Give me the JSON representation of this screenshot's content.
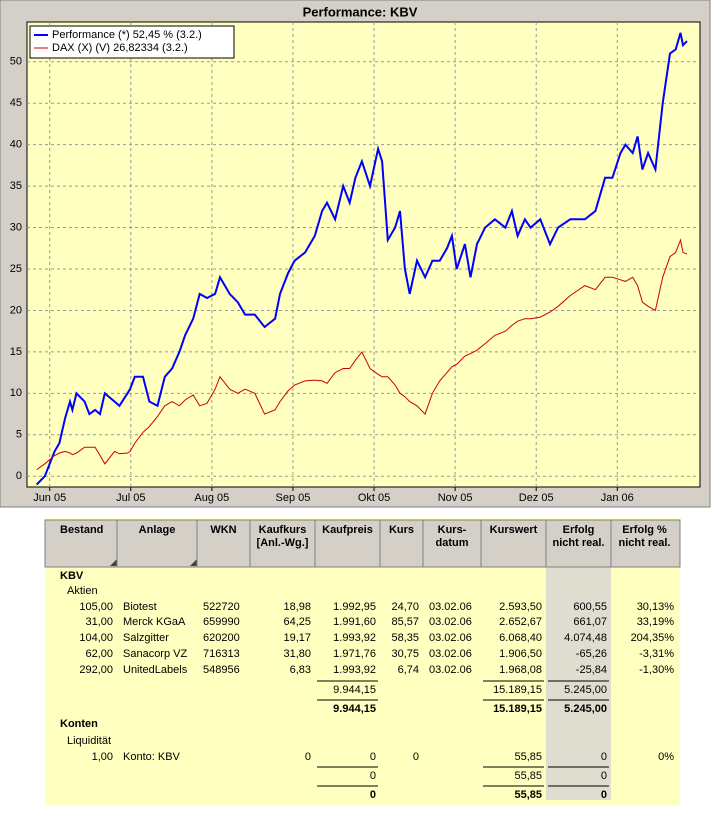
{
  "chart_data": {
    "type": "line",
    "title": "Performance: KBV",
    "x": [
      -0.16,
      -0.06,
      0.06,
      0.12,
      0.19,
      0.25,
      0.28,
      0.33,
      0.43,
      0.49,
      0.56,
      0.62,
      0.68,
      0.8,
      0.86,
      0.96,
      0.99,
      1.05,
      1.15,
      1.23,
      1.33,
      1.42,
      1.51,
      1.6,
      1.67,
      1.77,
      1.85,
      1.94,
      2.04,
      2.1,
      2.22,
      2.32,
      2.41,
      2.53,
      2.65,
      2.78,
      2.84,
      2.94,
      3.02,
      3.15,
      3.27,
      3.36,
      3.42,
      3.52,
      3.62,
      3.7,
      3.77,
      3.85,
      3.95,
      4.05,
      4.1,
      4.17,
      4.26,
      4.32,
      4.38,
      4.44,
      4.53,
      4.63,
      4.72,
      4.81,
      4.9,
      4.96,
      5.02,
      5.12,
      5.19,
      5.27,
      5.37,
      5.49,
      5.62,
      5.7,
      5.77,
      5.86,
      5.93,
      6.05,
      6.17,
      6.27,
      6.42,
      6.6,
      6.73,
      6.85,
      6.94,
      7.04,
      7.1,
      7.19,
      7.25,
      7.31,
      7.38,
      7.47,
      7.56,
      7.65,
      7.72,
      7.78,
      7.81,
      7.86
    ],
    "series": [
      {
        "name": "Performance (*) 52,45 % (3.2.)",
        "color": "#0000ff",
        "values": [
          -1,
          0,
          3,
          4,
          7,
          9,
          8,
          10,
          9,
          7.5,
          8,
          7.5,
          10,
          9,
          8.5,
          10,
          10.5,
          12,
          12,
          9,
          8.5,
          12,
          13,
          15,
          17,
          19,
          22,
          21.5,
          22,
          24,
          22,
          21,
          19.5,
          19.5,
          18,
          19,
          22,
          24.5,
          26,
          27,
          29,
          32,
          33,
          31,
          35,
          33,
          36,
          38,
          35,
          39.5,
          38,
          28.5,
          30,
          32,
          25,
          22,
          26,
          24,
          26,
          26,
          27.5,
          29,
          25,
          28,
          24,
          28,
          30,
          31,
          30,
          32,
          29,
          31,
          30,
          31,
          28,
          30,
          31,
          31,
          32,
          36,
          36,
          39,
          40,
          39,
          41,
          37,
          39,
          37,
          45,
          51,
          51.5,
          53.5,
          52,
          52.5
        ]
      },
      {
        "name": "DAX (X) (V) 26,82334 (3.2.)",
        "color": "#cc0000",
        "values": [
          0.8,
          1.5,
          2.5,
          2.8,
          3,
          2.8,
          2.6,
          2.8,
          3.5,
          3.5,
          3.5,
          2.5,
          1.5,
          3,
          2.7,
          2.8,
          3,
          4,
          5.3,
          6,
          7.2,
          8.5,
          9,
          8.5,
          9.2,
          9.8,
          8.5,
          8.8,
          10.5,
          12,
          10.5,
          10,
          10.5,
          10,
          7.5,
          8,
          9,
          10.3,
          11,
          11.5,
          11.6,
          11.5,
          11.2,
          12.5,
          13,
          13,
          14,
          15,
          13,
          12.3,
          12,
          12,
          11,
          10,
          9.6,
          9,
          8.5,
          7.5,
          10,
          11.5,
          12.5,
          13.2,
          13.5,
          14.5,
          14.8,
          15.2,
          16,
          17,
          17.5,
          18.2,
          18.7,
          19,
          19,
          19.2,
          19.8,
          20.5,
          21.8,
          23,
          22.5,
          24,
          24,
          23.7,
          23.5,
          24,
          23,
          21,
          20.5,
          20,
          24,
          26.5,
          27,
          28.5,
          27,
          26.8
        ]
      }
    ],
    "xlim": [
      -0.28,
      8.02
    ],
    "ylim": [
      -1.3,
      54.8
    ],
    "xticks": [
      {
        "value": 0,
        "label": "Jun 05"
      },
      {
        "value": 1,
        "label": "Jul 05"
      },
      {
        "value": 2,
        "label": "Aug 05"
      },
      {
        "value": 3,
        "label": "Sep 05"
      },
      {
        "value": 4,
        "label": "Okt 05"
      },
      {
        "value": 5,
        "label": "Nov 05"
      },
      {
        "value": 6,
        "label": "Dez 05"
      },
      {
        "value": 7,
        "label": "Jan 06"
      }
    ],
    "yticks": [
      0,
      5,
      10,
      15,
      20,
      25,
      30,
      35,
      40,
      45,
      50
    ],
    "grid": true,
    "legend": "upper left"
  },
  "table": {
    "headers": [
      [
        "Bestand"
      ],
      [
        "Anlage"
      ],
      [
        "WKN"
      ],
      [
        "Kaufkurs",
        "[Anl.-Wg.]"
      ],
      [
        "Kaufpreis"
      ],
      [
        "Kurs"
      ],
      [
        "Kurs-",
        "datum"
      ],
      [
        "Kurswert"
      ],
      [
        "Erfolg",
        "nicht real."
      ],
      [
        "Erfolg %",
        "nicht real."
      ]
    ],
    "rows": [
      [
        "KBV",
        null,
        null,
        null,
        null,
        null,
        null,
        null,
        null,
        null
      ],
      [
        "Aktien",
        null,
        null,
        null,
        null,
        null,
        null,
        null,
        null,
        null
      ],
      [
        "105,00",
        "Biotest",
        "522720",
        "18,98",
        "1.992,95",
        "24,70",
        "03.02.06",
        "2.593,50",
        "600,55",
        "30,13%"
      ],
      [
        "31,00",
        "Merck KGaA",
        "659990",
        "64,25",
        "1.991,60",
        "85,57",
        "03.02.06",
        "2.652,67",
        "661,07",
        "33,19%"
      ],
      [
        "104,00",
        "Salzgitter",
        "620200",
        "19,17",
        "1.993,92",
        "58,35",
        "03.02.06",
        "6.068,40",
        "4.074,48",
        "204,35%"
      ],
      [
        "62,00",
        "Sanacorp VZ",
        "716313",
        "31,80",
        "1.971,76",
        "30,75",
        "03.02.06",
        "1.906,50",
        "-65,26",
        "-3,31%"
      ],
      [
        "292,00",
        "UnitedLabels",
        "548956",
        "6,83",
        "1.993,92",
        "6,74",
        "03.02.06",
        "1.968,08",
        "-25,84",
        "-1,30%"
      ],
      [
        null,
        null,
        null,
        null,
        "9.944,15",
        null,
        null,
        "15.189,15",
        "5.245,00",
        null
      ],
      [
        null,
        null,
        null,
        null,
        "9.944,15",
        null,
        null,
        "15.189,15",
        "5.245,00",
        null
      ],
      [
        "Konten",
        null,
        null,
        null,
        null,
        null,
        null,
        null,
        null,
        null
      ],
      [
        "Liquidität",
        null,
        null,
        null,
        null,
        null,
        null,
        null,
        null,
        null
      ],
      [
        "1,00",
        "Konto: KBV",
        null,
        "0",
        "0",
        "0",
        null,
        "55,85",
        "0",
        "0%"
      ],
      [
        null,
        null,
        null,
        null,
        "0",
        null,
        null,
        "55,85",
        "0",
        null
      ],
      [
        null,
        null,
        null,
        null,
        "0",
        null,
        null,
        "55,85",
        "0",
        null
      ]
    ]
  }
}
